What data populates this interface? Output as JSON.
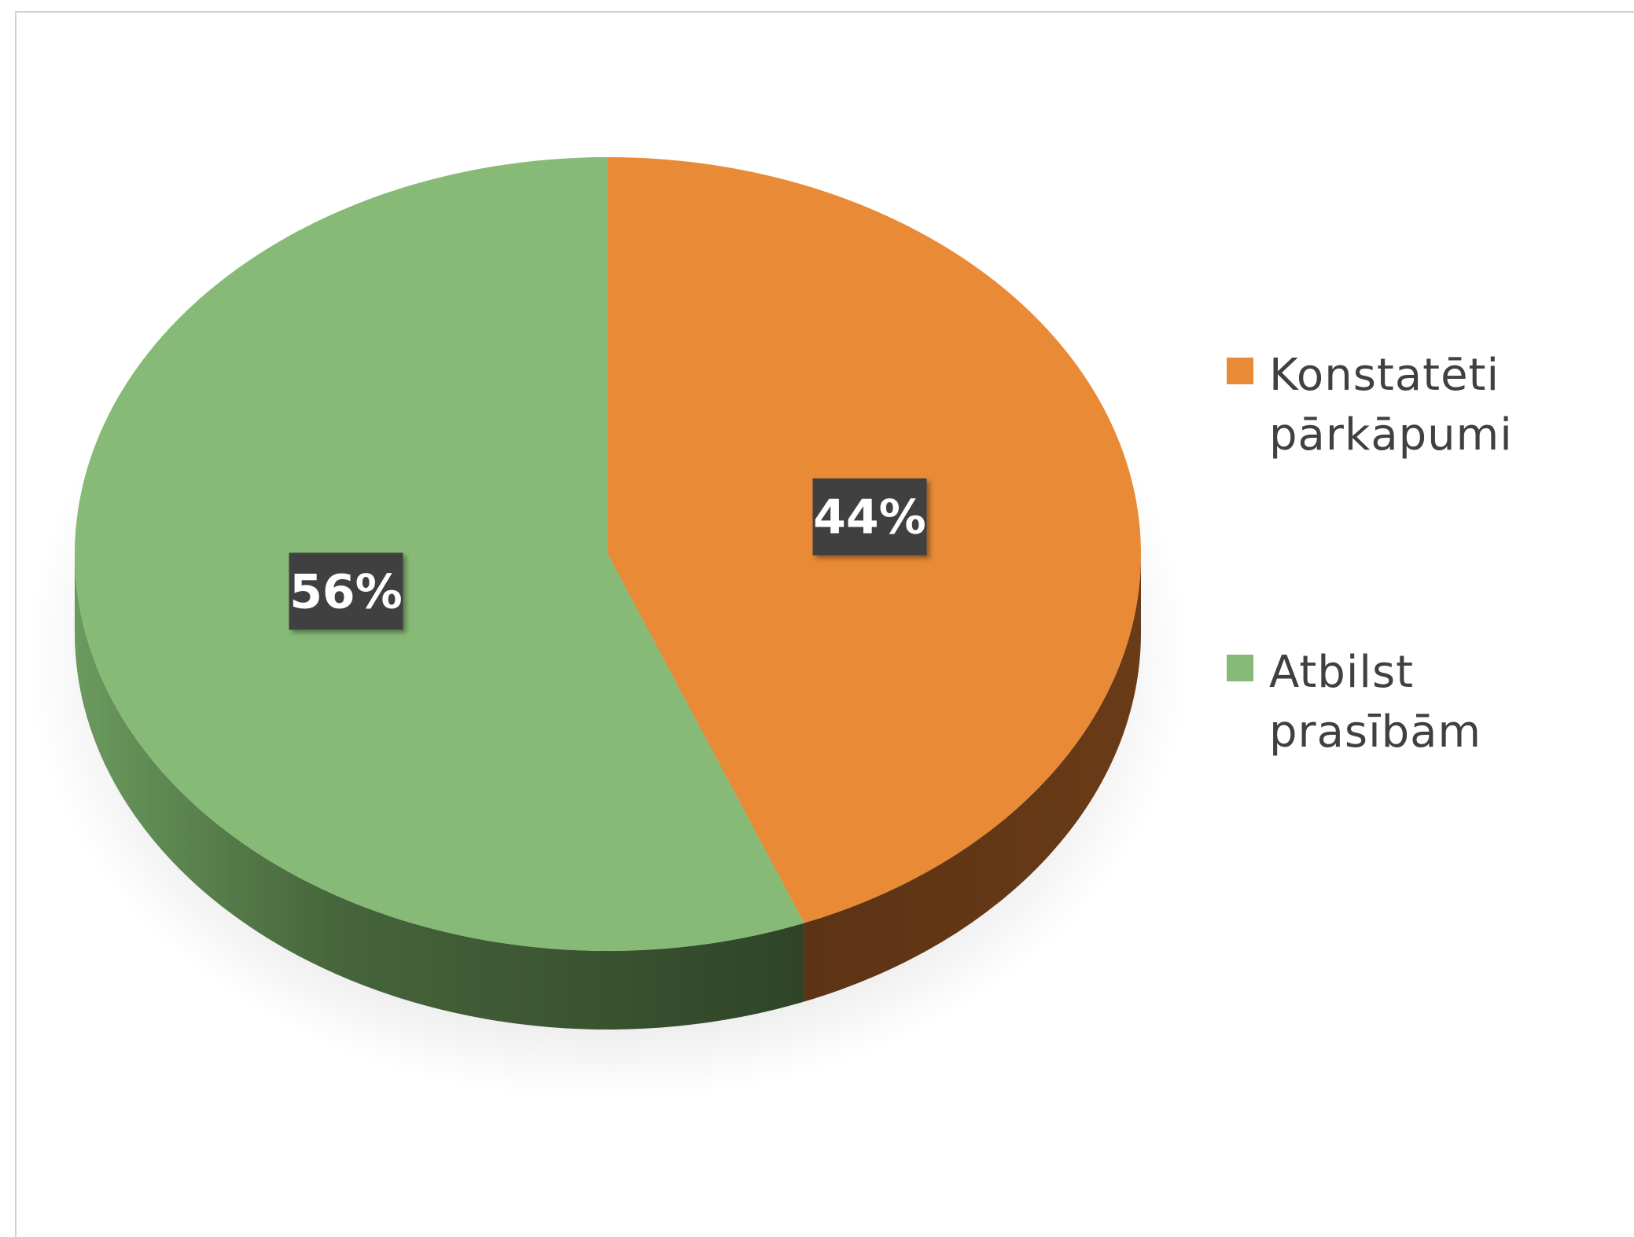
{
  "chart_data": {
    "type": "pie",
    "style": "3d",
    "categories": [
      "Konstatēti pārkāpumi",
      "Atbilst prasībām"
    ],
    "values": [
      44,
      56
    ],
    "data_labels": [
      "44%",
      "56%"
    ],
    "colors": [
      "#E88A36",
      "#87BA76"
    ],
    "side_colors": [
      "#5F3414",
      "#364D2D"
    ],
    "legend_position": "right",
    "title": ""
  },
  "legend": {
    "items": [
      {
        "label": "Konstatēti pārkāpumi",
        "color": "#E88A36"
      },
      {
        "label": "Atbilst prasībām",
        "color": "#87BA76"
      }
    ]
  }
}
